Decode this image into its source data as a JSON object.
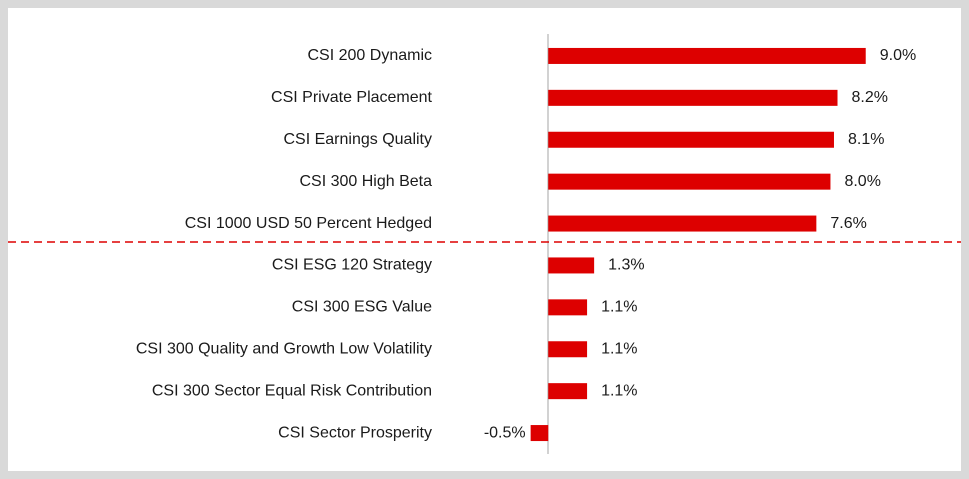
{
  "chart_data": {
    "type": "barh",
    "categories": [
      "CSI 200 Dynamic",
      "CSI Private Placement",
      "CSI Earnings Quality",
      "CSI 300 High Beta",
      "CSI 1000 USD 50 Percent Hedged",
      "CSI ESG 120 Strategy",
      "CSI 300 ESG Value",
      "CSI 300 Quality and Growth Low Volatility",
      "CSI 300 Sector Equal Risk Contribution",
      "CSI Sector Prosperity"
    ],
    "values": [
      9.0,
      8.2,
      8.1,
      8.0,
      7.6,
      1.3,
      1.1,
      1.1,
      1.1,
      -0.5
    ],
    "value_labels": [
      "9.0%",
      "8.2%",
      "8.1%",
      "8.0%",
      "7.6%",
      "1.3%",
      "1.1%",
      "1.1%",
      "1.1%",
      "-0.5%"
    ],
    "color": "#dd0000",
    "xlim": [
      -1,
      10
    ]
  }
}
